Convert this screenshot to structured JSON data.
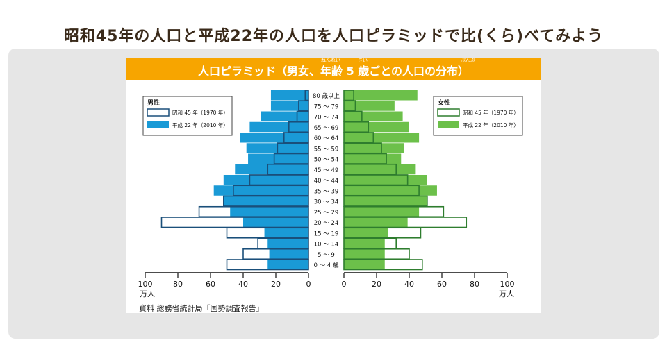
{
  "page_title": "昭和45年の人口と平成22年の人口を人口ピラミッドで比(くら)べてみよう",
  "banner": {
    "title": "人口ピラミッド（男女、年齢 5 歳ごとの人口の分布）",
    "ruby": [
      "ねんれい",
      "さい",
      "ぶんぷ"
    ]
  },
  "legend_male": {
    "heading": "男性",
    "outline_label": "昭和 45 年（1970 年）",
    "filled_label": "平成 22 年（2010 年）"
  },
  "legend_female": {
    "heading": "女性",
    "outline_label": "昭和 45 年（1970 年）",
    "filled_label": "平成 22 年（2010 年）"
  },
  "colors": {
    "male_fill": "#1a9ad6",
    "male_outline": "#1a4f7a",
    "female_fill": "#6cc04a",
    "female_outline": "#2e7d2e",
    "banner": "#f7a500"
  },
  "axis": {
    "male_ticks": [
      "100",
      "80",
      "60",
      "40",
      "20",
      "0"
    ],
    "female_ticks": [
      "0",
      "20",
      "40",
      "60",
      "80",
      "100"
    ],
    "unit_left": "万人",
    "unit_right": "万人"
  },
  "source": "資料 総務省統計局「国勢調査報告」",
  "chart_data": {
    "type": "bar",
    "orientation": "horizontal-population-pyramid",
    "categories": [
      "80 歳以上",
      "75 ～ 79",
      "70 ～ 74",
      "65 ～ 69",
      "60 ～ 64",
      "55 ～ 59",
      "50 ～ 54",
      "45 ～ 49",
      "40 ～ 44",
      "35 ～ 39",
      "30 ～ 34",
      "25 ～ 29",
      "20 ～ 24",
      "15 ～ 19",
      "10 ～ 14",
      "5 ～ 9",
      "0 ～ 4 歳"
    ],
    "xlim": [
      0,
      100
    ],
    "series": [
      {
        "name": "男性 昭和 45 年（1970 年）",
        "side": "left",
        "style": "outline",
        "values": [
          2,
          6,
          7,
          12,
          15,
          19,
          21,
          25,
          36,
          46,
          52,
          67,
          90,
          50,
          31,
          40,
          50
        ]
      },
      {
        "name": "男性 平成 22 年（2010 年）",
        "side": "left",
        "style": "filled",
        "values": [
          23,
          23,
          29,
          36,
          42,
          38,
          37,
          45,
          52,
          58,
          52,
          48,
          40,
          27,
          25,
          24,
          25
        ]
      },
      {
        "name": "女性 昭和 45 年（1970 年）",
        "side": "right",
        "style": "outline",
        "values": [
          6,
          7,
          11,
          15,
          18,
          23,
          26,
          32,
          39,
          46,
          51,
          61,
          75,
          47,
          32,
          40,
          48
        ]
      },
      {
        "name": "女性 平成 22 年（2010 年）",
        "side": "right",
        "style": "filled",
        "values": [
          45,
          31,
          36,
          40,
          46,
          37,
          35,
          44,
          51,
          57,
          51,
          46,
          39,
          27,
          25,
          25,
          25
        ]
      }
    ]
  }
}
